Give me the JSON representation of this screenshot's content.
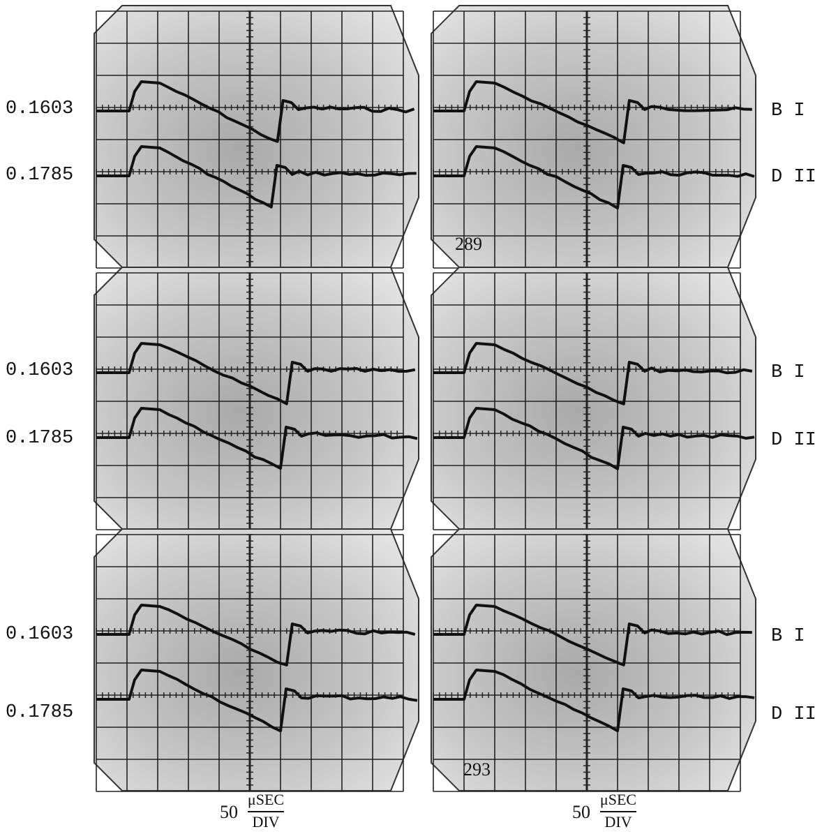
{
  "rows": [
    {
      "left_labels": [
        "0.1603",
        "0.1785"
      ],
      "right_labels": [
        "B I",
        "D II"
      ]
    },
    {
      "left_labels": [
        "0.1603",
        "0.1785"
      ],
      "right_labels": [
        "B I",
        "D II"
      ]
    },
    {
      "left_labels": [
        "0.1603",
        "0.1785"
      ],
      "right_labels": [
        "B I",
        "D II"
      ]
    }
  ],
  "frame_numbers": [
    "289",
    "293"
  ],
  "scale_labels": [
    {
      "value": "50",
      "numerator": "μSEC",
      "denominator": "DIV"
    },
    {
      "value": "50",
      "numerator": "μSEC",
      "denominator": "DIV"
    }
  ]
}
